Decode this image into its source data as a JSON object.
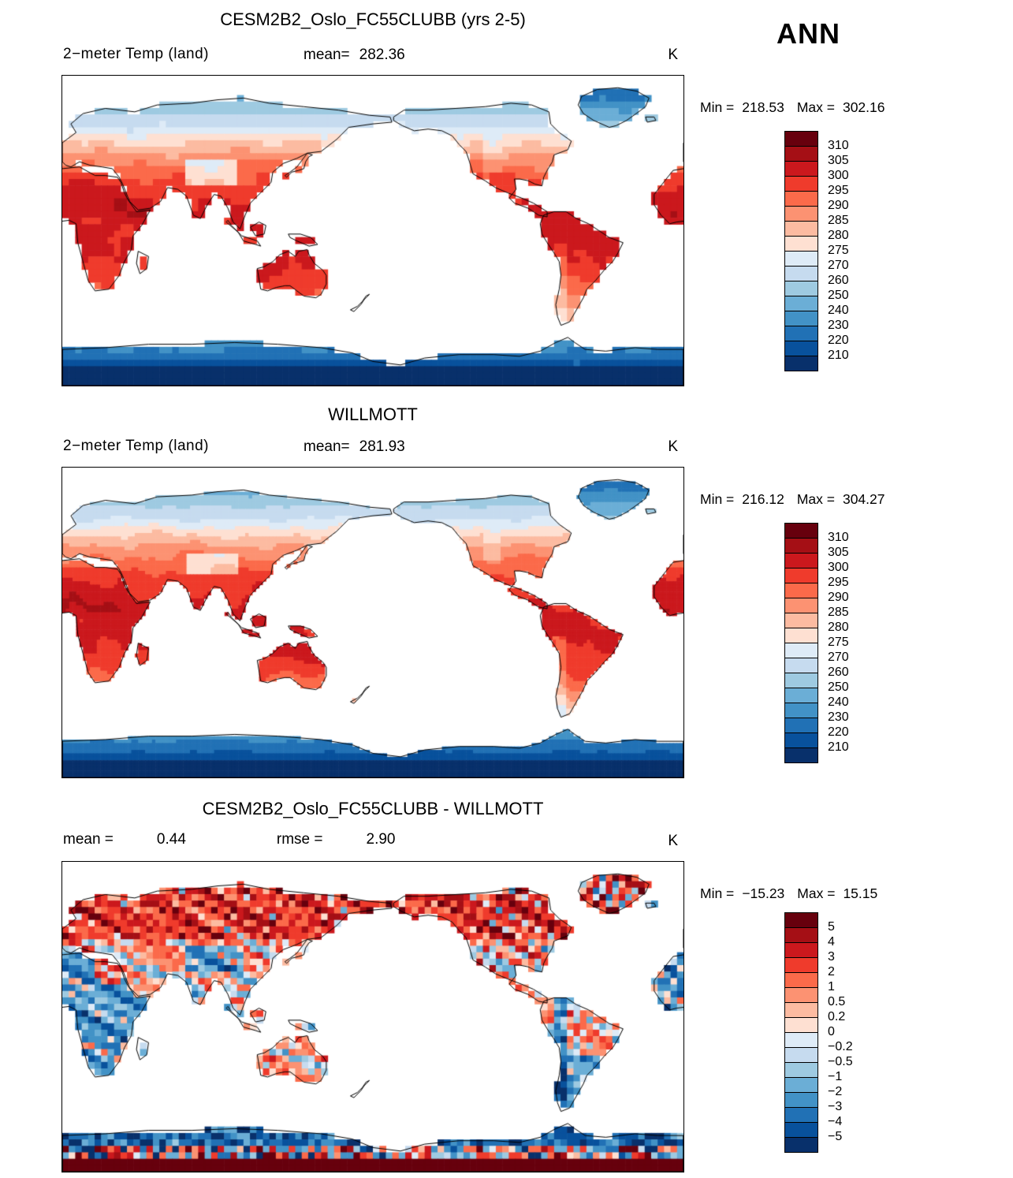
{
  "header": {
    "season_label": "ANN"
  },
  "panels": [
    {
      "title": "CESM2B2_Oslo_FC55CLUBB (yrs 2-5)",
      "var_label": "2−meter Temp (land)",
      "mean_label": "mean=",
      "mean_value": "282.36",
      "units": "K",
      "min_label": "Min =",
      "min_value": "218.53",
      "max_label": "Max =",
      "max_value": "302.16",
      "colorbar": {
        "labels": [
          "310",
          "305",
          "300",
          "295",
          "290",
          "285",
          "280",
          "275",
          "270",
          "260",
          "250",
          "240",
          "230",
          "220",
          "210"
        ],
        "colors": [
          "#67000d",
          "#a50f15",
          "#cb181d",
          "#ef3b2c",
          "#fb6a4a",
          "#fc9272",
          "#fcbba1",
          "#fee0d2",
          "#deebf7",
          "#c6dbef",
          "#9ecae1",
          "#6baed6",
          "#4292c6",
          "#2171b5",
          "#08519c",
          "#08306b"
        ]
      }
    },
    {
      "title": "WILLMOTT",
      "var_label": "2−meter Temp (land)",
      "mean_label": "mean=",
      "mean_value": "281.93",
      "units": "K",
      "min_label": "Min =",
      "min_value": "216.12",
      "max_label": "Max =",
      "max_value": "304.27",
      "colorbar": {
        "labels": [
          "310",
          "305",
          "300",
          "295",
          "290",
          "285",
          "280",
          "275",
          "270",
          "260",
          "250",
          "240",
          "230",
          "220",
          "210"
        ],
        "colors": [
          "#67000d",
          "#a50f15",
          "#cb181d",
          "#ef3b2c",
          "#fb6a4a",
          "#fc9272",
          "#fcbba1",
          "#fee0d2",
          "#deebf7",
          "#c6dbef",
          "#9ecae1",
          "#6baed6",
          "#4292c6",
          "#2171b5",
          "#08519c",
          "#08306b"
        ]
      }
    },
    {
      "title": "CESM2B2_Oslo_FC55CLUBB - WILLMOTT",
      "mean_label": "mean =",
      "mean_value": "0.44",
      "rmse_label": "rmse =",
      "rmse_value": "2.90",
      "units": "K",
      "min_label": "Min =",
      "min_value": "−15.23",
      "max_label": "Max =",
      "max_value": "15.15",
      "colorbar": {
        "labels": [
          "5",
          "4",
          "3",
          "2",
          "1",
          "0.5",
          "0.2",
          "0",
          "−0.2",
          "−0.5",
          "−1",
          "−2",
          "−3",
          "−4",
          "−5"
        ],
        "colors": [
          "#67000d",
          "#a50f15",
          "#cb181d",
          "#ef3b2c",
          "#fb6a4a",
          "#fc9272",
          "#fcbba1",
          "#fee0d2",
          "#deebf7",
          "#c6dbef",
          "#9ecae1",
          "#6baed6",
          "#4292c6",
          "#2171b5",
          "#08519c",
          "#08306b"
        ]
      }
    }
  ],
  "chart_data": [
    {
      "type": "heatmap",
      "panel": "model",
      "title": "CESM2B2_Oslo_FC55CLUBB (yrs 2-5)",
      "variable": "2-meter Temp (land)",
      "season": "ANN",
      "units": "K",
      "mean": 282.36,
      "min": 218.53,
      "max": 302.16,
      "projection": "global cylindrical lat-lon, lon 0-360 with Greenwich at left edge, land-only shading, ocean white",
      "grid": {
        "nx": 96,
        "ny": 48
      },
      "colorbar_levels": [
        210,
        220,
        230,
        240,
        250,
        260,
        270,
        275,
        280,
        285,
        290,
        295,
        300,
        305,
        310
      ],
      "colorbar_colors": [
        "#67000d",
        "#a50f15",
        "#cb181d",
        "#ef3b2c",
        "#fb6a4a",
        "#fc9272",
        "#fcbba1",
        "#fee0d2",
        "#deebf7",
        "#c6dbef",
        "#9ecae1",
        "#6baed6",
        "#4292c6",
        "#2171b5",
        "#08519c",
        "#08306b"
      ]
    },
    {
      "type": "heatmap",
      "panel": "observations",
      "title": "WILLMOTT",
      "variable": "2-meter Temp (land)",
      "season": "ANN",
      "units": "K",
      "mean": 281.93,
      "min": 216.12,
      "max": 304.27,
      "projection": "global cylindrical lat-lon, lon 0-360 with Greenwich at left edge, land-only shading, ocean white",
      "grid": {
        "nx": 180,
        "ny": 90
      },
      "colorbar_levels": [
        210,
        220,
        230,
        240,
        250,
        260,
        270,
        275,
        280,
        285,
        290,
        295,
        300,
        305,
        310
      ],
      "colorbar_colors": [
        "#67000d",
        "#a50f15",
        "#cb181d",
        "#ef3b2c",
        "#fb6a4a",
        "#fc9272",
        "#fcbba1",
        "#fee0d2",
        "#deebf7",
        "#c6dbef",
        "#9ecae1",
        "#6baed6",
        "#4292c6",
        "#2171b5",
        "#08519c",
        "#08306b"
      ]
    },
    {
      "type": "heatmap",
      "panel": "difference",
      "title": "CESM2B2_Oslo_FC55CLUBB - WILLMOTT",
      "variable": "2-meter Temp (land) difference",
      "season": "ANN",
      "units": "K",
      "mean": 0.44,
      "rmse": 2.9,
      "min": -15.23,
      "max": 15.15,
      "projection": "global cylindrical lat-lon, lon 0-360 with Greenwich at left edge, land-only shading, ocean white",
      "grid": {
        "nx": 96,
        "ny": 48
      },
      "colorbar_levels": [
        -5,
        -4,
        -3,
        -2,
        -1,
        -0.5,
        -0.2,
        0,
        0.2,
        0.5,
        1,
        2,
        3,
        4,
        5
      ],
      "colorbar_colors": [
        "#67000d",
        "#a50f15",
        "#cb181d",
        "#ef3b2c",
        "#fb6a4a",
        "#fc9272",
        "#fcbba1",
        "#fee0d2",
        "#deebf7",
        "#c6dbef",
        "#9ecae1",
        "#6baed6",
        "#4292c6",
        "#2171b5",
        "#08519c",
        "#08306b"
      ]
    }
  ]
}
